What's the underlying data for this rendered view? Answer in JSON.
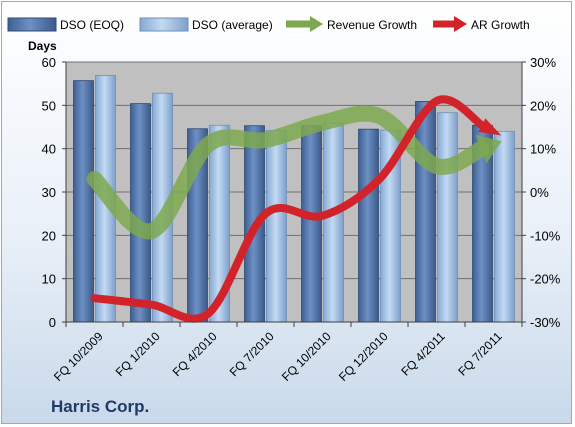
{
  "company": "Harris Corp.",
  "legend": {
    "items": [
      {
        "label": "DSO (EOQ)",
        "kind": "bar",
        "color": "#5b7fb4"
      },
      {
        "label": "DSO (average)",
        "kind": "bar",
        "color": "#a9c6e6"
      },
      {
        "label": "Revenue Growth",
        "kind": "arrow",
        "color": "#7ea84f"
      },
      {
        "label": "AR Growth",
        "kind": "arrow",
        "color": "#d2232a"
      }
    ]
  },
  "chart_data": {
    "type": "bar",
    "categories": [
      "FQ 10/2009",
      "FQ 1/2010",
      "FQ 4/2010",
      "FQ 7/2010",
      "FQ 10/2010",
      "FQ 12/2010",
      "FQ 4/2011",
      "FQ 7/2011"
    ],
    "y_axis_label": "Days",
    "ylim": [
      0,
      60
    ],
    "y_ticks": [
      "0",
      "10",
      "20",
      "30",
      "40",
      "50",
      "60"
    ],
    "y2lim": [
      -30,
      30
    ],
    "y2_ticks": [
      "-30%",
      "-20%",
      "-10%",
      "0%",
      "10%",
      "20%",
      "30%"
    ],
    "grid": true,
    "legend_position": "top",
    "series": [
      {
        "name": "DSO (EOQ)",
        "type": "bar",
        "axis": "left",
        "values": [
          55.7,
          50.4,
          44.6,
          45.3,
          45.3,
          44.5,
          50.9,
          45.4
        ]
      },
      {
        "name": "DSO (average)",
        "type": "bar",
        "axis": "left",
        "values": [
          56.9,
          52.8,
          45.4,
          44.2,
          45.9,
          44.3,
          48.3,
          44.0
        ]
      },
      {
        "name": "Revenue Growth",
        "type": "line",
        "axis": "right",
        "unit": "%",
        "values": [
          3,
          -9,
          11,
          12,
          16,
          17.5,
          6,
          11
        ]
      },
      {
        "name": "AR Growth",
        "type": "line",
        "axis": "right",
        "unit": "%",
        "values": [
          -24.5,
          -26,
          -28,
          -5,
          -5.5,
          3,
          21,
          14
        ]
      }
    ],
    "colors": {
      "plot_area": "#c0c0c0",
      "gridline": "#707070",
      "bar_eoq": "#5b7fb4",
      "bar_avg": "#a9c6e6",
      "revenue_line": "#7ea84f",
      "ar_line": "#d2232a",
      "axis_text": "#000000"
    }
  }
}
